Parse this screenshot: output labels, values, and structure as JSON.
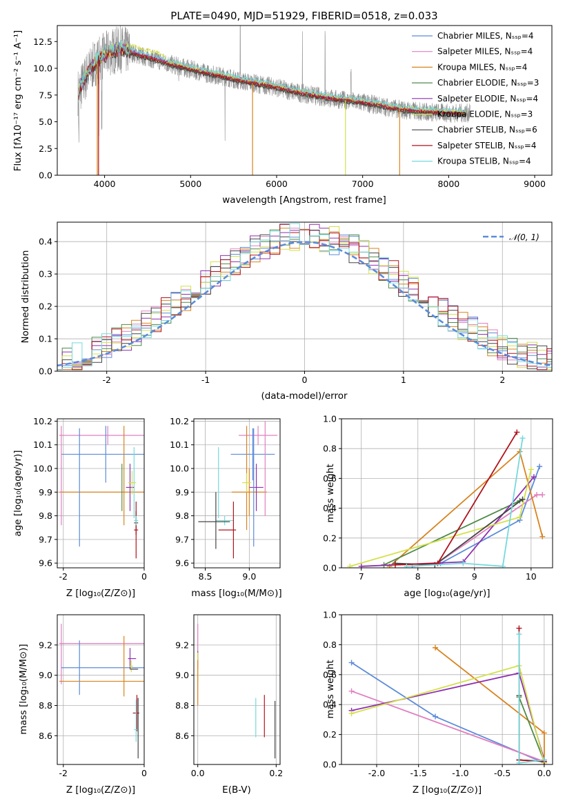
{
  "chart_data": [
    {
      "type": "line",
      "title": "PLATE=0490, MJD=51929, FIBERID=0518, z=0.033",
      "xlabel": "wavelength [Angstrom, rest frame]",
      "ylabel": "Flux [fλ10⁻¹⁷ erg cm⁻² s⁻¹ A⁻¹]",
      "xlim": [
        3450,
        9200
      ],
      "ylim": [
        0,
        14
      ],
      "xticks": [
        4000,
        5000,
        6000,
        7000,
        8000,
        9000
      ],
      "yticks": [
        0.0,
        2.5,
        5.0,
        7.5,
        10.0,
        12.5
      ],
      "grid": false,
      "legend": "top-right",
      "spectrum_knots": {
        "x": [
          3700,
          3800,
          3900,
          4000,
          4100,
          4200,
          4400,
          4600,
          4800,
          5000,
          5200,
          5400,
          5600,
          5800,
          6000,
          6200,
          6400,
          6600,
          6800,
          7000,
          7200,
          7400,
          7600,
          7800,
          8000,
          8200
        ],
        "y": [
          7.8,
          9.5,
          10.6,
          11.2,
          11.6,
          11.8,
          11.2,
          10.8,
          10.3,
          9.9,
          9.5,
          9.2,
          8.8,
          8.5,
          8.2,
          7.8,
          7.5,
          7.2,
          7.0,
          6.8,
          6.5,
          6.2,
          6.0,
          5.9,
          5.8,
          5.8
        ]
      },
      "series": [
        {
          "name": "Chabrier MILES, Nₛₛₚ=4",
          "color": "#5b8bd9"
        },
        {
          "name": "Salpeter MILES, Nₛₛₚ=4",
          "color": "#e17fbf"
        },
        {
          "name": "Kroupa MILES, Nₛₛₚ=4",
          "color": "#d9821d"
        },
        {
          "name": "Chabrier ELODIE, Nₛₛₚ=3",
          "color": "#4e8a47"
        },
        {
          "name": "Salpeter ELODIE, Nₛₛₚ=4",
          "color": "#8e2fb0"
        },
        {
          "name": "Kroupa ELODIE, Nₛₛₚ=3",
          "color": "#d4e04a"
        },
        {
          "name": "Chabrier STELIB, Nₛₛₚ=6",
          "color": "#444444"
        },
        {
          "name": "Salpeter STELIB, Nₛₛₚ=4",
          "color": "#b0121b"
        },
        {
          "name": "Kroupa STELIB, Nₛₛₚ=4",
          "color": "#74d9dc"
        }
      ]
    },
    {
      "type": "histogram",
      "xlabel": "(data-model)/error",
      "ylabel": "Normed distribution",
      "xlim": [
        -2.5,
        2.5
      ],
      "ylim": [
        0,
        0.46
      ],
      "xticks": [
        -2,
        -1,
        0,
        1,
        2
      ],
      "yticks": [
        0.0,
        0.1,
        0.2,
        0.3,
        0.4
      ],
      "grid": true,
      "legend": "top-right",
      "reference_curve": {
        "name": "𝒩(0, 1)",
        "color": "#5b8bd9"
      }
    },
    {
      "type": "scatter",
      "xlabel": "Z [log₁₀(Z/Z⊙)]",
      "ylabel": "age  [log₁₀(age/yr)]",
      "xlim": [
        -2.15,
        0
      ],
      "ylim": [
        9.58,
        10.21
      ],
      "xticks": [
        -2,
        0
      ],
      "yticks": [
        9.6,
        9.7,
        9.8,
        9.9,
        10.0,
        10.1,
        10.2
      ],
      "grid": true
    },
    {
      "type": "scatter",
      "xlabel": "mass [log₁₀(M/M⊙)]",
      "ylabel": "",
      "xlim": [
        8.37,
        9.35
      ],
      "ylim": [
        9.58,
        10.21
      ],
      "xticks": [
        8.5,
        9.0
      ],
      "yticks": [
        9.6,
        9.7,
        9.8,
        9.9,
        10.0,
        10.1,
        10.2
      ],
      "grid": true
    },
    {
      "type": "line",
      "xlabel": "age  [log₁₀(age/yr)]",
      "ylabel": "mass weight",
      "xlim": [
        6.65,
        10.38
      ],
      "ylim": [
        0,
        1.0
      ],
      "xticks": [
        7,
        8,
        9,
        10
      ],
      "yticks": [
        0.0,
        0.2,
        0.4,
        0.6,
        0.8,
        1.0
      ],
      "grid": true
    },
    {
      "type": "scatter",
      "xlabel": "Z [log₁₀(Z/Z⊙)]",
      "ylabel": "mass [log₁₀(M/M⊙)]",
      "xlim": [
        -2.15,
        0
      ],
      "ylim": [
        8.41,
        9.4
      ],
      "xticks": [
        -2,
        0
      ],
      "yticks": [
        8.6,
        8.8,
        9.0,
        9.2
      ],
      "grid": true
    },
    {
      "type": "scatter",
      "xlabel": "E(B-V)",
      "ylabel": "",
      "xlim": [
        -0.01,
        0.21
      ],
      "ylim": [
        8.41,
        9.4
      ],
      "xticks": [
        0.0,
        0.2
      ],
      "yticks": [
        8.6,
        8.8,
        9.0,
        9.2
      ],
      "grid": true
    },
    {
      "type": "line",
      "xlabel": "Z [log₁₀(Z/Z⊙)]",
      "ylabel": "mass weight",
      "xlim": [
        -2.42,
        0.1
      ],
      "ylim": [
        0,
        1.0
      ],
      "xticks": [
        -2.0,
        -1.5,
        -1.0,
        -0.5,
        0.0
      ],
      "yticks": [
        0.0,
        0.2,
        0.4,
        0.6,
        0.8,
        1.0
      ],
      "grid": true
    }
  ]
}
